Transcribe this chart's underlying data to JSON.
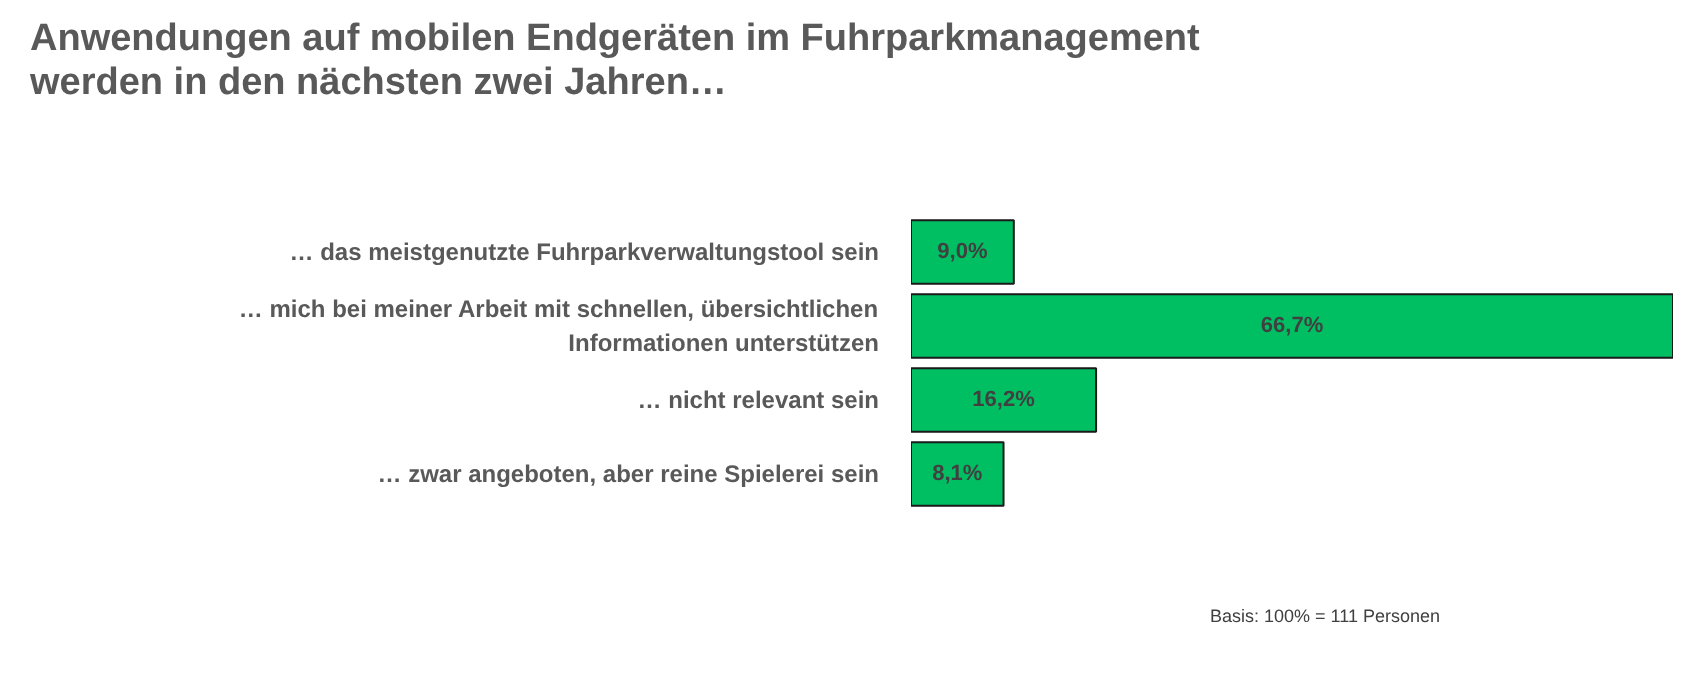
{
  "chart_data": {
    "type": "bar",
    "orientation": "horizontal",
    "title": "Anwendungen auf mobilen Endgeräten im Fuhrparkmanagement\nwerden in den nächsten zwei Jahren…",
    "categories": [
      "… das meistgenutzte Fuhrparkverwaltungstool sein",
      "… mich bei meiner Arbeit mit schnellen, übersichtlichen\nInformationen unterstützen",
      "… nicht relevant sein",
      "… zwar angeboten, aber reine Spielerei sein"
    ],
    "values": [
      9.0,
      66.7,
      16.2,
      8.1
    ],
    "value_labels": [
      "9,0%",
      "66,7%",
      "16,2%",
      "8,1%"
    ],
    "color": "#00bf63",
    "annotations": [
      "Basis: 100% = 111 Personen"
    ],
    "grid": false
  }
}
